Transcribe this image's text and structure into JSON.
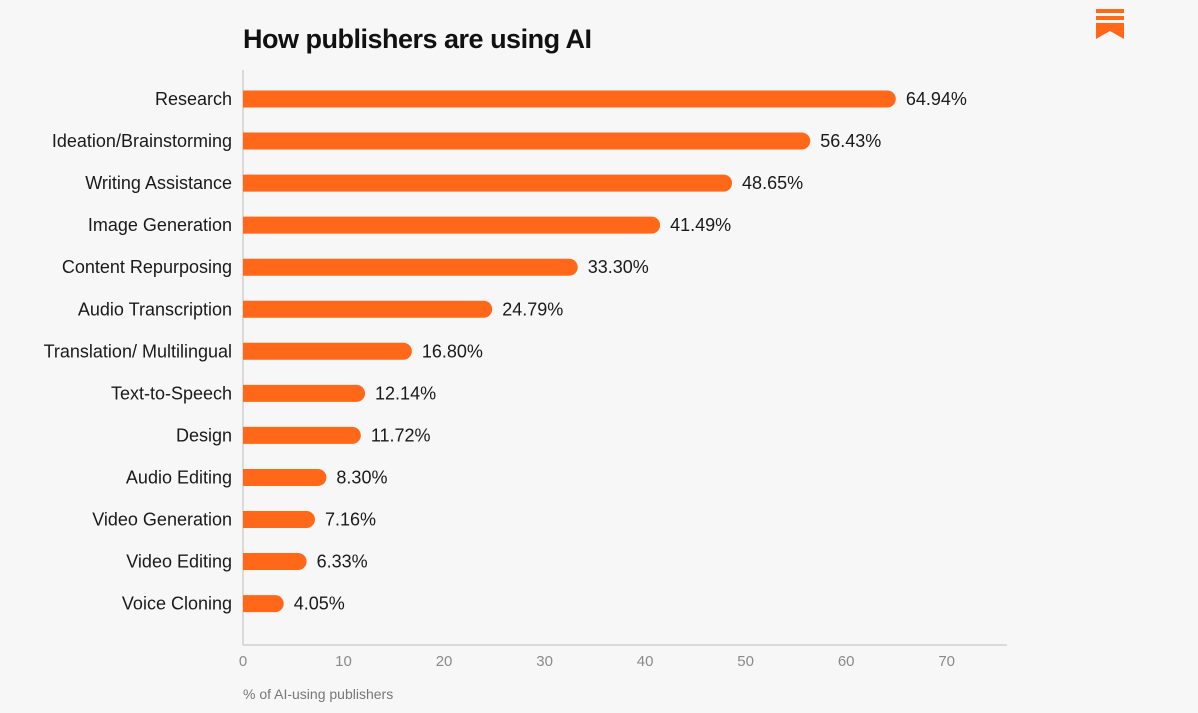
{
  "brand": {
    "icon": "substack-logo-icon",
    "color": "#ff6719"
  },
  "chart_data": {
    "type": "bar",
    "orientation": "horizontal",
    "title": "How publishers are using AI",
    "categories": [
      "Research",
      "Ideation/Brainstorming",
      "Writing Assistance",
      "Image Generation",
      "Content Repurposing",
      "Audio Transcription",
      "Translation/ Multilingual",
      "Text-to-Speech",
      "Design",
      "Audio Editing",
      "Video Generation",
      "Video Editing",
      "Voice Cloning"
    ],
    "values": [
      64.94,
      56.43,
      48.65,
      41.49,
      33.3,
      24.79,
      16.8,
      12.14,
      11.72,
      8.3,
      7.16,
      6.33,
      4.05
    ],
    "value_labels": [
      "64.94%",
      "56.43%",
      "48.65%",
      "41.49%",
      "33.30%",
      "24.79%",
      "16.80%",
      "12.14%",
      "11.72%",
      "8.30%",
      "7.16%",
      "6.33%",
      "4.05%"
    ],
    "xlim": [
      0,
      76
    ],
    "xticks": [
      0,
      10,
      20,
      30,
      40,
      50,
      60,
      70
    ],
    "xlabel": "% of AI-using publishers",
    "bar_color": "#ff6719",
    "grid": false
  }
}
